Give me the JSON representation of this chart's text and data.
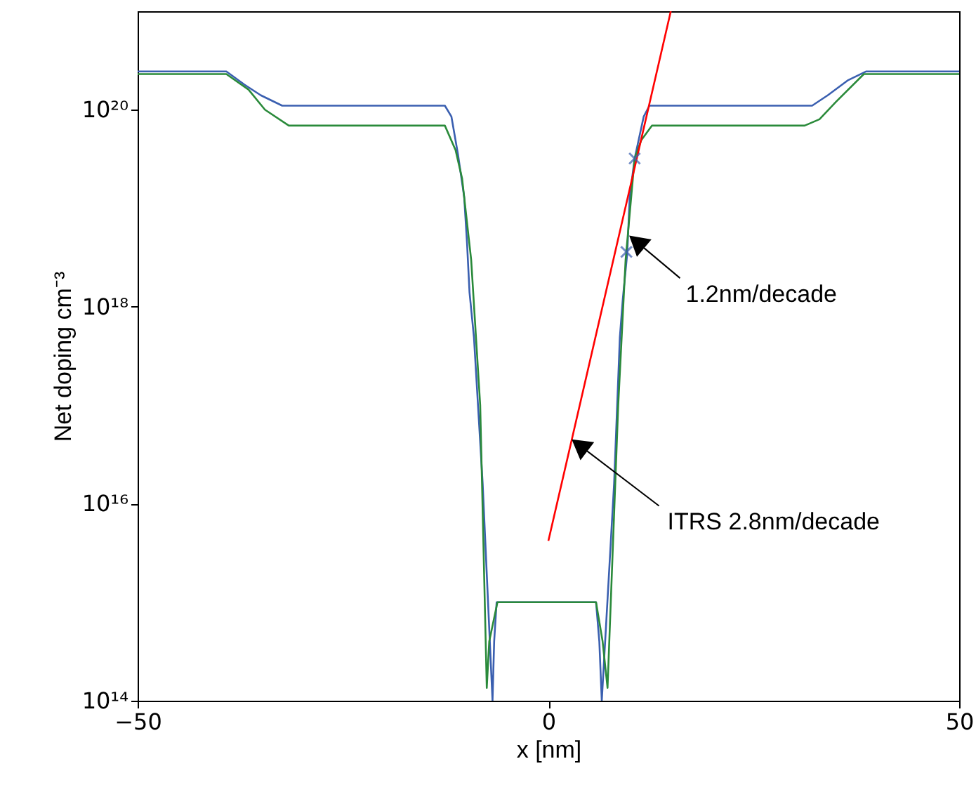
{
  "chart_data": {
    "type": "line",
    "xlabel": "x [nm]",
    "ylabel": "Net doping cm⁻³",
    "xlim": [
      -50,
      50
    ],
    "xticks": [
      -50,
      0,
      50
    ],
    "ylim": [
      100000000000000.0,
      1e+21
    ],
    "yticks": [
      {
        "value": 100000000000000.0,
        "label": "10¹⁴"
      },
      {
        "value": 1e+16,
        "label": "10¹⁶"
      },
      {
        "value": 1e+18,
        "label": "10¹⁸"
      },
      {
        "value": 1e+20,
        "label": "10²⁰"
      }
    ],
    "log": "y",
    "grid": false,
    "series": [
      {
        "color": "#3a5fb0",
        "x": [
          -50,
          -39.2,
          -37,
          -35,
          -32.4,
          -12.6,
          -11.8,
          -11,
          -10.25,
          -9.9,
          -9.6,
          -9.06,
          -8,
          -6.8,
          -6.6,
          -6.3,
          5.8,
          6.2,
          6.5,
          8,
          8.7,
          9.06,
          9.6,
          9.9,
          10.5,
          11.6,
          12.3,
          32.1,
          34,
          36.5,
          38.7,
          50
        ],
        "values": [
          2.45e+20,
          2.45e+20,
          1.8e+20,
          1.4e+20,
          1.1e+20,
          1.1e+20,
          8.5e+19,
          3.5e+19,
          1.3e+19,
          4.4e+18,
          1.4e+18,
          4.9e+17,
          1.6e+16,
          100000000000000.0,
          400000000000000.0,
          1000000000000000.0,
          1000000000000000.0,
          400000000000000.0,
          100000000000000.0,
          1.6e+16,
          4.9e+17,
          1.2e+18,
          3.5e+18,
          1.3e+19,
          3.2e+19,
          8.5e+19,
          1.1e+20,
          1.1e+20,
          1.4e+20,
          2e+20,
          2.45e+20,
          2.45e+20
        ]
      },
      {
        "color": "#2a8a3a",
        "x": [
          -50,
          -39.2,
          -36.5,
          -34.5,
          -31.6,
          -12.6,
          -11.3,
          -10.5,
          -9.4,
          -8.3,
          -7.5,
          -7.2,
          -6.2,
          5.8,
          6.6,
          7.2,
          8.5,
          9.4,
          10.5,
          11.3,
          12.6,
          31.2,
          33,
          35,
          38.4,
          50
        ],
        "values": [
          2.3e+20,
          2.3e+20,
          1.6e+20,
          1e+20,
          6.9e+19,
          6.9e+19,
          3.9e+19,
          2e+19,
          3e+18,
          1e+17,
          135000000000000.0,
          400000000000000.0,
          1000000000000000.0,
          1000000000000000.0,
          400000000000000.0,
          135000000000000.0,
          1e+17,
          3e+18,
          3.2e+19,
          4.9e+19,
          6.9e+19,
          6.9e+19,
          8e+19,
          1.2e+20,
          2.3e+20,
          2.3e+20
        ]
      },
      {
        "color": "#ff0000",
        "x": [
          0,
          14.9
        ],
        "values": [
          4200000000000000.0,
          1e+21
        ]
      },
      {
        "type": "scatter",
        "marker": "cross",
        "color": "#3a5fb0",
        "x": [
          10.5,
          9.5
        ],
        "values": [
          3.2e+19,
          3.6e+18
        ]
      }
    ],
    "annotations": [
      {
        "text": "1.2nm/decade",
        "x": 9.7,
        "y": 5.4e+18
      },
      {
        "text": "ITRS 2.8nm/decade",
        "x": 2.7,
        "y": 4.6e+16
      }
    ]
  }
}
